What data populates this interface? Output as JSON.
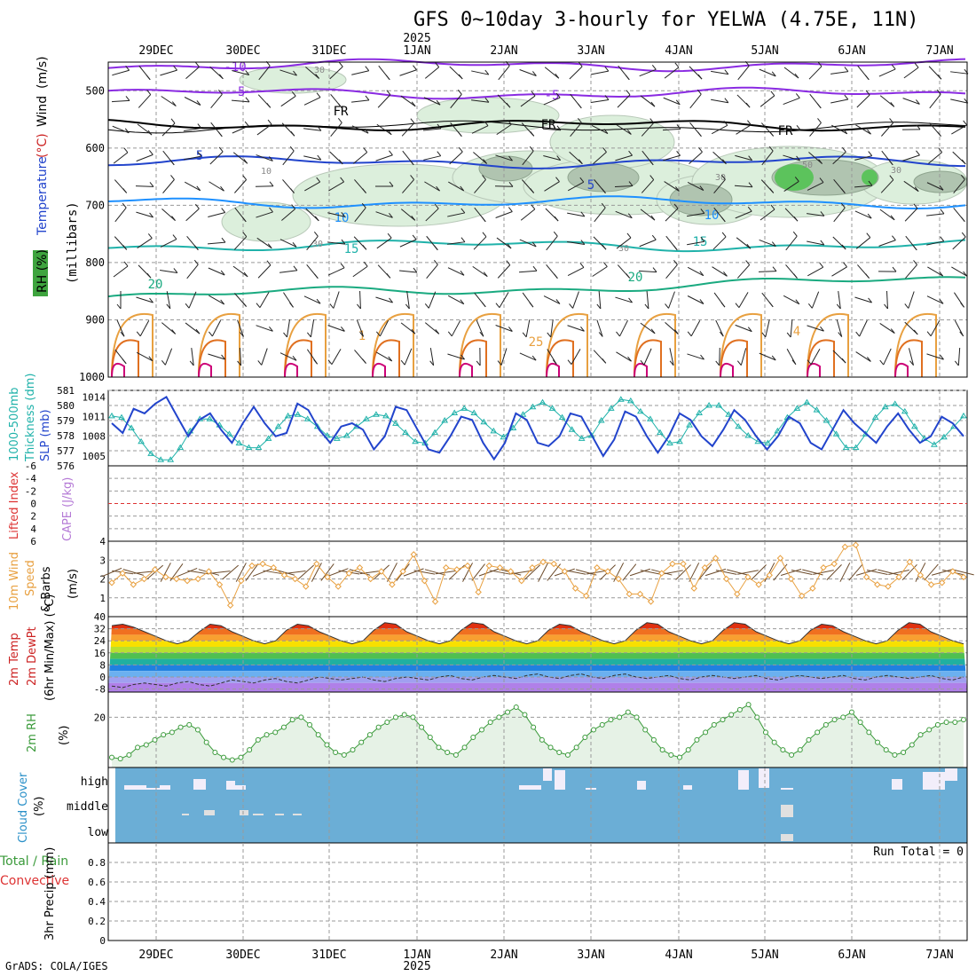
{
  "title": "GFS 0~10day 3-hourly for YELWA (4.75E, 11N)",
  "footer": "GrADS: COLA/IGES",
  "colors": {
    "frame": "#000000",
    "grid": "#999999",
    "rh_fill": "#dcefdc",
    "cloud_blue": "#6baed6",
    "cloud_white": "#f2eefa",
    "precip_bg": "#ffffff",
    "cyan": "#20b2aa",
    "blue": "#2244cc",
    "orange": "#e8a040",
    "purple": "#8a2be2",
    "green": "#3a9a3a"
  },
  "time_axis": {
    "top_labels": [
      "29DEC",
      "30DEC",
      "31DEC",
      "1JAN",
      "2JAN",
      "3JAN",
      "4JAN",
      "5JAN",
      "6JAN",
      "7JAN"
    ],
    "year_label": "2025",
    "bottom_labels": [
      "29DEC",
      "30DEC",
      "31DEC",
      "1JAN",
      "2JAN",
      "3JAN",
      "4JAN",
      "5JAN",
      "6JAN",
      "7JAN"
    ]
  },
  "chart_data": [
    {
      "type": "contour",
      "panel": "upper-air",
      "ylabel_parts": [
        "RH (%)",
        "Temperature",
        " (°C)",
        "Wind",
        " (m/s)"
      ],
      "yaxis_title": "(millibars)",
      "yticks": [
        500,
        600,
        700,
        800,
        900,
        1000
      ],
      "ylim": [
        450,
        1000
      ],
      "temperature_contour_labels": [
        "-10",
        "-5",
        "-5",
        "FR",
        "FR",
        "FR",
        "5",
        "5",
        "10",
        "10",
        "15",
        "15",
        "20",
        "20",
        "1",
        "25",
        "4"
      ],
      "rh_contour_labels": [
        "30",
        "10",
        "30",
        "30",
        "50",
        "30",
        "30"
      ]
    },
    {
      "type": "line",
      "panel": "thickness-slp",
      "ylabel_parts": [
        "1000-500mb",
        "Thickness (dm)",
        "SLP (mb)"
      ],
      "left_ticks": [
        576,
        577,
        578,
        579,
        580,
        581
      ],
      "right_ticks": [
        1005,
        1008,
        1011,
        1014
      ],
      "series": [
        {
          "label": "Thickness (dm)",
          "color": "#20b2aa",
          "values": [
            579.3,
            579.2,
            578.5,
            577.6,
            576.8,
            576.4,
            576.4,
            577.2,
            578.3,
            579.1,
            579.1,
            578.7,
            578.1,
            577.5,
            577.2,
            577.2,
            577.8,
            578.6,
            579.3,
            579.4,
            579.1,
            578.6,
            578.0,
            577.8,
            578.0,
            578.6,
            579.1,
            579.4,
            579.3,
            578.8,
            578.2,
            577.6,
            577.5,
            578.2,
            579.0,
            579.5,
            579.8,
            579.5,
            578.9,
            578.3,
            577.9,
            578.5,
            579.4,
            579.9,
            580.2,
            579.8,
            579.2,
            578.4,
            577.8,
            578.0,
            579.0,
            579.8,
            580.4,
            580.3,
            579.6,
            579.1,
            578.2,
            577.5,
            577.6,
            578.7,
            579.5,
            580.0,
            580.0,
            579.4,
            578.6,
            578.0,
            577.6,
            577.5,
            578.3,
            579.2,
            579.8,
            580.2,
            579.7,
            579.0,
            578.1,
            577.2,
            577.2,
            578.1,
            579.2,
            579.9,
            580.1,
            579.6,
            578.6,
            577.8,
            577.4,
            577.9,
            578.6,
            579.3
          ]
        },
        {
          "label": "SLP (mb)",
          "color": "#2244cc",
          "values": [
            1010,
            1008.5,
            1012.2,
            1011.5,
            1013,
            1014,
            1011,
            1008,
            1010.5,
            1011.5,
            1009,
            1007,
            1010,
            1012.5,
            1010,
            1008,
            1008.5,
            1013,
            1012,
            1009,
            1007,
            1009.5,
            1010,
            1009,
            1006,
            1008,
            1012.5,
            1012,
            1009,
            1006,
            1005.5,
            1008,
            1011,
            1010.5,
            1007,
            1004.5,
            1007,
            1011.5,
            1010.5,
            1007,
            1006.5,
            1008,
            1011.5,
            1011,
            1008,
            1005,
            1007.5,
            1011.8,
            1011,
            1008,
            1005.5,
            1008,
            1011.5,
            1010.5,
            1008,
            1006.5,
            1009,
            1012,
            1010.5,
            1008,
            1006,
            1008,
            1011,
            1010,
            1007,
            1006,
            1009,
            1012,
            1010,
            1008.5,
            1007,
            1009.5,
            1011.5,
            1009,
            1007,
            1008,
            1011,
            1010,
            1008
          ]
        }
      ]
    },
    {
      "type": "line",
      "panel": "lifted-index",
      "ylabel_parts": [
        "Lifted Index",
        "CAPE (J/kg)"
      ],
      "yticks": [
        -6,
        -4,
        -2,
        0,
        2,
        4,
        6
      ],
      "ytick_labels": [
        "-6",
        "-4",
        "-2",
        "0",
        "2",
        "4",
        "6"
      ]
    },
    {
      "type": "line",
      "panel": "10m-wind",
      "ylabel_parts": [
        "10m Wind",
        "Speed",
        "& Barbs",
        "(m/s)"
      ],
      "yticks": [
        1,
        2,
        3,
        4
      ],
      "ylim": [
        0,
        4
      ],
      "series": [
        {
          "label": "Speed",
          "color": "#e8a040",
          "values": [
            1.8,
            2.3,
            1.7,
            2.0,
            2.5,
            2.1,
            2.0,
            1.9,
            2.0,
            2.4,
            1.7,
            0.6,
            1.9,
            2.7,
            2.8,
            2.6,
            2.2,
            2.0,
            1.6,
            2.8,
            2.1,
            1.6,
            2.3,
            2.6,
            2.0,
            2.4,
            1.7,
            2.4,
            3.3,
            1.9,
            0.8,
            2.6,
            2.5,
            2.7,
            1.3,
            2.7,
            2.6,
            2.4,
            1.9,
            2.6,
            2.9,
            2.8,
            2.4,
            1.5,
            1.1,
            2.6,
            2.4,
            2.0,
            1.2,
            1.2,
            0.8,
            2.3,
            2.8,
            2.8,
            1.5,
            2.6,
            3.1,
            2.0,
            1.2,
            2.1,
            1.7,
            2.2,
            3.1,
            2.0,
            1.1,
            1.5,
            2.6,
            2.8,
            3.7,
            3.8,
            2.1,
            1.7,
            1.6,
            2.1,
            2.9,
            2.2,
            1.7,
            1.8,
            2.4,
            2.1
          ]
        }
      ]
    },
    {
      "type": "area",
      "panel": "2m-temp",
      "ylabel_parts": [
        "2m Temp",
        "2m DewPt",
        "(6hr Min/Max) (°C)"
      ],
      "yticks": [
        40,
        32,
        24,
        16,
        8,
        0,
        -8
      ],
      "ylim": [
        -10,
        40
      ],
      "series": [
        {
          "label": "2m Temp",
          "values": [
            34,
            35,
            33,
            30,
            27,
            24,
            22,
            24,
            30,
            35,
            34,
            30,
            27,
            24,
            22,
            24,
            31,
            35,
            34,
            30,
            27,
            24,
            22,
            24,
            31,
            36,
            35,
            30,
            27,
            24,
            22,
            24,
            31,
            36,
            35,
            30,
            27,
            24,
            22,
            24,
            31,
            35,
            34,
            30,
            27,
            24,
            22,
            24,
            31,
            36,
            35,
            30,
            27,
            24,
            22,
            24,
            31,
            36,
            35,
            30,
            27,
            24,
            22,
            24,
            31,
            35,
            34,
            30,
            27,
            24,
            22,
            24,
            31,
            36,
            35,
            30,
            27,
            24,
            22
          ]
        },
        {
          "label": "2m DewPt",
          "values": [
            -6,
            -7,
            -5,
            -4,
            -5,
            -6,
            -4,
            -3,
            -5,
            -6,
            -4,
            -2,
            -3,
            -4,
            -2,
            -1,
            -3,
            -4,
            -2,
            0,
            -1,
            -2,
            -1,
            0,
            -2,
            -3,
            -1,
            0,
            -1,
            -2,
            0,
            1,
            -1,
            -2,
            0,
            1,
            0,
            -1,
            1,
            2,
            0,
            -1,
            1,
            2,
            0,
            -1,
            1,
            2,
            0,
            -1,
            0,
            1,
            -1,
            -2,
            0,
            1,
            0,
            -1,
            0,
            1,
            -1,
            -2,
            0,
            1,
            0,
            -1,
            0,
            1,
            -1,
            -2,
            0,
            1,
            0,
            -1,
            0,
            1,
            -1,
            -2,
            0
          ]
        }
      ]
    },
    {
      "type": "area",
      "panel": "2m-rh",
      "ylabel_parts": [
        "2m RH",
        "(%)"
      ],
      "yticks": [
        20
      ],
      "ylim": [
        0,
        30
      ],
      "series": [
        {
          "label": "2m RH",
          "values": [
            4,
            3.5,
            5,
            8,
            9,
            11,
            13,
            14,
            16,
            17,
            15,
            10,
            6,
            4,
            3,
            4,
            7,
            11,
            13,
            14,
            16,
            19,
            20,
            17,
            13,
            9,
            6,
            5,
            7,
            10,
            13,
            16,
            18,
            20,
            21,
            20,
            16,
            12,
            8,
            6,
            5,
            8,
            12,
            15,
            18,
            20,
            22,
            24,
            21,
            16,
            11,
            8,
            6,
            5,
            8,
            12,
            15,
            17,
            19,
            20,
            22,
            20,
            15,
            11,
            7,
            5,
            4,
            7,
            11,
            14,
            17,
            19,
            21,
            23,
            25,
            20,
            14,
            10,
            7,
            5,
            7,
            11,
            14,
            17,
            19,
            20,
            22,
            18,
            14,
            10,
            7,
            5,
            6,
            9,
            13,
            15,
            17,
            18,
            18,
            19
          ]
        }
      ]
    },
    {
      "type": "bar",
      "panel": "cloud-cover",
      "ylabel_parts": [
        "Cloud Cover",
        "(%)"
      ],
      "level_labels": [
        "high",
        "middle",
        "low"
      ]
    },
    {
      "type": "bar",
      "panel": "precip",
      "ylabel_parts": [
        "Total / Rain",
        "Convective",
        "3hr Precip (mm)"
      ],
      "yticks": [
        0,
        0.2,
        0.4,
        0.6,
        0.8
      ],
      "ytick_labels": [
        "0",
        "0.2",
        "0.4",
        "0.6",
        "0.8"
      ],
      "ylim": [
        0,
        1
      ],
      "annotation": "Run Total = 0"
    }
  ]
}
